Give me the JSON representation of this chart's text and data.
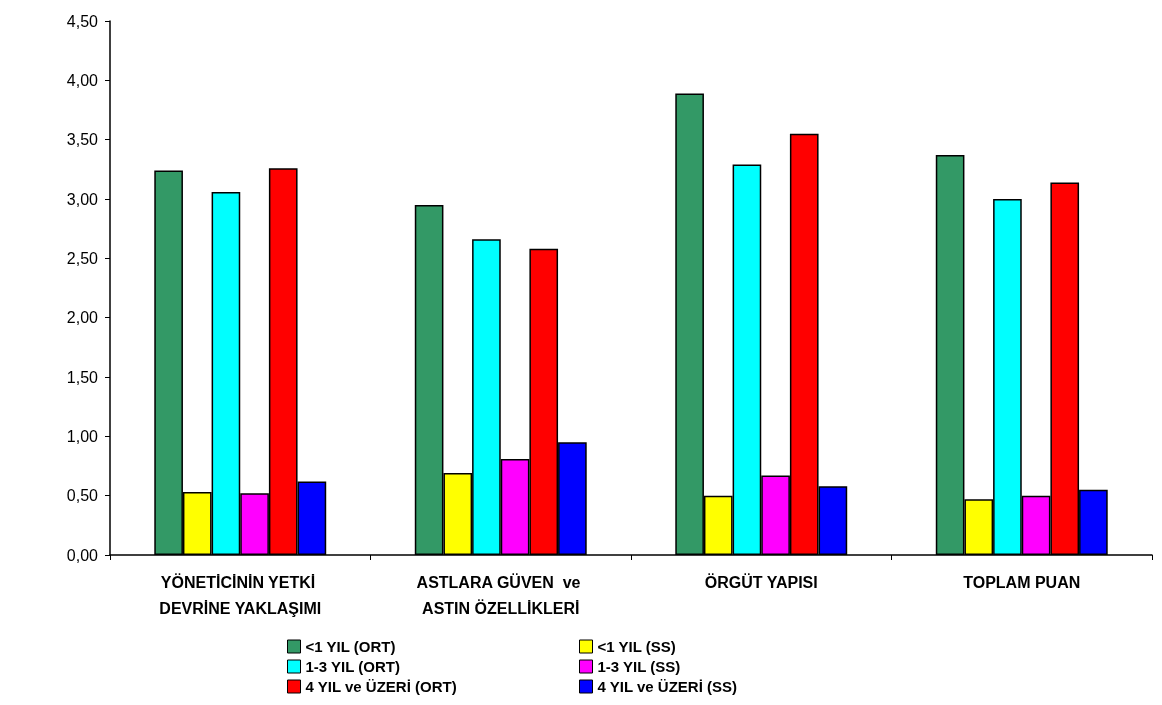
{
  "chart_data": {
    "type": "bar",
    "categories": [
      "YÖNETİCİNİN YETKİ DEVRİNE YAKLAŞIMI",
      "ASTLARA GÜVEN  ve ASTIN ÖZELLİKLERİ",
      "ÖRGÜT YAPISI",
      "TOPLAM PUAN"
    ],
    "series": [
      {
        "name": "<1 YIL (ORT)",
        "color": "#339966",
        "values": [
          3.24,
          2.95,
          3.89,
          3.37
        ]
      },
      {
        "name": "<1 YIL (SS)",
        "color": "#ffff00",
        "values": [
          0.53,
          0.69,
          0.5,
          0.47
        ]
      },
      {
        "name": "1-3 YIL (ORT)",
        "color": "#00ffff",
        "values": [
          3.06,
          2.66,
          3.29,
          3.0
        ]
      },
      {
        "name": "1-3 YIL (SS)",
        "color": "#ff00ff",
        "values": [
          0.52,
          0.81,
          0.67,
          0.5
        ]
      },
      {
        "name": "4 YIL ve ÜZERİ (ORT)",
        "color": "#ff0000",
        "values": [
          3.26,
          2.58,
          3.55,
          3.14
        ]
      },
      {
        "name": "4 YIL ve ÜZERİ (SS)",
        "color": "#0000ff",
        "values": [
          0.62,
          0.95,
          0.58,
          0.55
        ]
      }
    ],
    "ylim": [
      0,
      4.5
    ],
    "yticks": [
      {
        "value": 0,
        "label": "0,00"
      },
      {
        "value": 0.5,
        "label": "0,50"
      },
      {
        "value": 1,
        "label": "1,00"
      },
      {
        "value": 1.5,
        "label": "1,50"
      },
      {
        "value": 2,
        "label": "2,00"
      },
      {
        "value": 2.5,
        "label": "2,50"
      },
      {
        "value": 3,
        "label": "3,00"
      },
      {
        "value": 3.5,
        "label": "3,50"
      },
      {
        "value": 4,
        "label": "4,00"
      },
      {
        "value": 4.5,
        "label": "4,50"
      }
    ],
    "grid": false,
    "legend": "bottom"
  }
}
